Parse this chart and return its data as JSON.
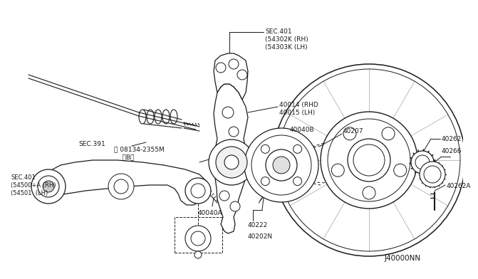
{
  "bg_color": "#ffffff",
  "lc": "#1a1a1a",
  "labels": {
    "sec401_top": "SEC.401\n(54302K (RH)\n(54303K (LH)",
    "sec391": "SEC.391",
    "bolt_label": "Ⓑ 08134-2355M\n    〈B〉",
    "part_40014": "40014 (RHD\n40015 (LH)",
    "part_40040B": "40040B",
    "part_40040A": "40040A",
    "part_40207": "40207",
    "part_40222": "40222",
    "part_40202N": "40202N",
    "part_40262": "40262",
    "part_40266": "40266",
    "part_40262A": "40262A",
    "sec401_bottom": "SEC.401\n(54500+A (RH)\n(54501  (LH)",
    "diagram_id": "J40000NN"
  },
  "fontsize": 6.5
}
